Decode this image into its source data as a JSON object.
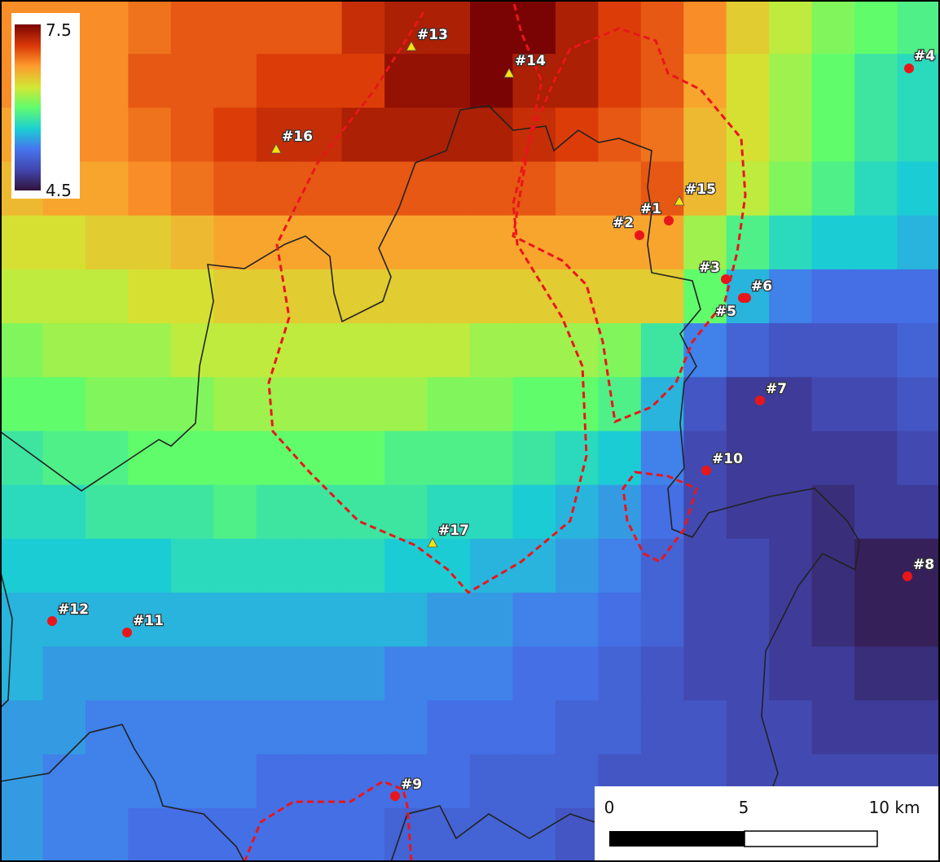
{
  "colorbar": {
    "max": 7.5,
    "min": 4.5
  },
  "grid": {
    "values": [
      [
        6.8,
        6.8,
        6.8,
        6.9,
        7.0,
        7.0,
        7.0,
        7.0,
        7.2,
        7.3,
        7.3,
        7.5,
        7.5,
        7.3,
        7.1,
        7.0,
        6.8,
        6.5,
        6.3,
        6.1,
        6.0,
        5.9
      ],
      [
        6.8,
        6.8,
        6.8,
        7.0,
        7.0,
        7.0,
        7.1,
        7.1,
        7.1,
        7.4,
        7.4,
        7.5,
        7.3,
        7.3,
        7.1,
        7.0,
        6.7,
        6.4,
        6.2,
        6.0,
        5.8,
        5.7
      ],
      [
        6.7,
        6.8,
        6.8,
        6.9,
        7.0,
        7.1,
        7.2,
        7.2,
        7.3,
        7.3,
        7.3,
        7.3,
        7.2,
        7.1,
        7.0,
        6.9,
        6.6,
        6.4,
        6.2,
        6.0,
        5.8,
        5.7
      ],
      [
        6.6,
        6.7,
        6.7,
        6.8,
        6.9,
        7.0,
        7.0,
        7.0,
        7.0,
        7.0,
        7.0,
        7.0,
        7.0,
        6.9,
        6.9,
        7.0,
        6.6,
        6.3,
        6.1,
        5.9,
        5.7,
        5.6
      ],
      [
        6.4,
        6.4,
        6.5,
        6.5,
        6.6,
        6.7,
        6.7,
        6.7,
        6.7,
        6.7,
        6.7,
        6.7,
        6.7,
        6.7,
        6.7,
        6.7,
        6.2,
        5.9,
        5.7,
        5.6,
        5.6,
        5.5
      ],
      [
        6.3,
        6.3,
        6.3,
        6.4,
        6.4,
        6.5,
        6.5,
        6.5,
        6.5,
        6.5,
        6.5,
        6.5,
        6.5,
        6.5,
        6.5,
        6.5,
        6.0,
        5.5,
        5.3,
        5.2,
        5.2,
        5.2
      ],
      [
        6.1,
        6.2,
        6.2,
        6.2,
        6.3,
        6.3,
        6.3,
        6.3,
        6.3,
        6.3,
        6.3,
        6.2,
        6.2,
        6.2,
        6.1,
        5.8,
        5.3,
        5.1,
        5.0,
        5.0,
        5.0,
        5.1
      ],
      [
        6.0,
        6.0,
        6.1,
        6.1,
        6.1,
        6.2,
        6.2,
        6.2,
        6.2,
        6.2,
        6.1,
        6.1,
        6.0,
        6.0,
        5.9,
        5.5,
        5.0,
        4.8,
        4.8,
        4.9,
        4.9,
        5.0
      ],
      [
        5.8,
        5.9,
        5.9,
        6.0,
        6.0,
        6.0,
        6.0,
        6.0,
        6.0,
        5.9,
        5.9,
        5.9,
        5.8,
        5.7,
        5.6,
        5.3,
        4.9,
        4.8,
        4.8,
        4.8,
        4.8,
        4.9
      ],
      [
        5.7,
        5.7,
        5.8,
        5.8,
        5.8,
        5.9,
        5.8,
        5.8,
        5.8,
        5.8,
        5.7,
        5.7,
        5.6,
        5.5,
        5.4,
        5.2,
        4.9,
        4.8,
        4.8,
        4.7,
        4.8,
        4.8
      ],
      [
        5.6,
        5.6,
        5.6,
        5.6,
        5.7,
        5.7,
        5.7,
        5.7,
        5.7,
        5.6,
        5.6,
        5.5,
        5.5,
        5.4,
        5.3,
        5.1,
        4.9,
        4.9,
        4.8,
        4.7,
        4.6,
        4.6
      ],
      [
        5.5,
        5.5,
        5.5,
        5.5,
        5.5,
        5.5,
        5.5,
        5.5,
        5.5,
        5.5,
        5.4,
        5.4,
        5.3,
        5.3,
        5.2,
        5.1,
        4.9,
        4.9,
        4.8,
        4.7,
        4.6,
        4.6
      ],
      [
        5.5,
        5.4,
        5.4,
        5.4,
        5.4,
        5.4,
        5.4,
        5.4,
        5.4,
        5.3,
        5.3,
        5.3,
        5.2,
        5.2,
        5.1,
        5.0,
        4.9,
        4.9,
        4.8,
        4.8,
        4.7,
        4.7
      ],
      [
        5.4,
        5.4,
        5.3,
        5.3,
        5.3,
        5.3,
        5.3,
        5.3,
        5.3,
        5.3,
        5.2,
        5.2,
        5.2,
        5.1,
        5.1,
        5.0,
        5.0,
        4.9,
        4.9,
        4.8,
        4.8,
        4.8
      ],
      [
        5.4,
        5.3,
        5.3,
        5.3,
        5.3,
        5.3,
        5.2,
        5.2,
        5.2,
        5.2,
        5.2,
        5.1,
        5.1,
        5.1,
        5.0,
        5.0,
        5.0,
        4.9,
        4.9,
        4.9,
        4.9,
        4.9
      ],
      [
        5.4,
        5.3,
        5.3,
        5.2,
        5.2,
        5.2,
        5.2,
        5.2,
        5.2,
        5.1,
        5.1,
        5.1,
        5.1,
        5.0,
        5.0,
        5.0,
        5.0,
        5.0,
        4.9,
        4.9,
        4.9,
        4.9
      ]
    ]
  },
  "stations": [
    {
      "label": "#1"
    },
    {
      "label": "#2"
    },
    {
      "label": "#3"
    },
    {
      "label": "#4"
    },
    {
      "label": "#5"
    },
    {
      "label": "#6"
    },
    {
      "label": "#7"
    },
    {
      "label": "#8"
    },
    {
      "label": "#9"
    },
    {
      "label": "#10"
    },
    {
      "label": "#11"
    },
    {
      "label": "#12"
    },
    {
      "label": "#13"
    },
    {
      "label": "#14"
    },
    {
      "label": "#15"
    },
    {
      "label": "#16"
    },
    {
      "label": "#17"
    }
  ],
  "scale_bar": {
    "labels": [
      "0",
      "5",
      "10 km"
    ]
  }
}
